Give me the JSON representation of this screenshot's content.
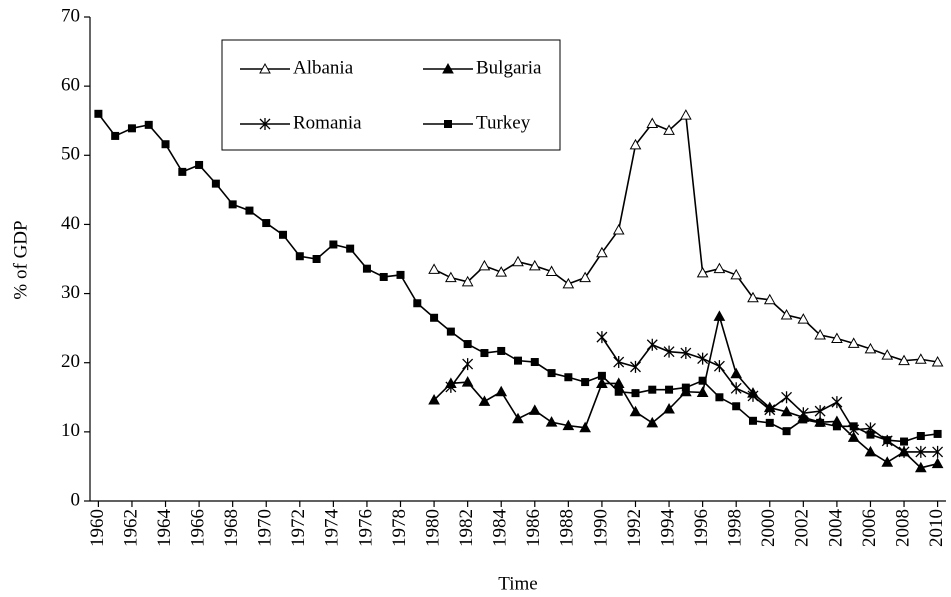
{
  "chart_data": {
    "type": "line",
    "x_label": "Time",
    "y_label": "% of GDP",
    "x": [
      1960,
      1961,
      1962,
      1963,
      1964,
      1965,
      1966,
      1967,
      1968,
      1969,
      1970,
      1971,
      1972,
      1973,
      1974,
      1975,
      1976,
      1977,
      1978,
      1979,
      1980,
      1981,
      1982,
      1983,
      1984,
      1985,
      1986,
      1987,
      1988,
      1989,
      1990,
      1991,
      1992,
      1993,
      1994,
      1995,
      1996,
      1997,
      1998,
      1999,
      2000,
      2001,
      2002,
      2003,
      2004,
      2005,
      2006,
      2007,
      2008,
      2009,
      2010
    ],
    "series": [
      {
        "name": "Albania",
        "color": "#000000",
        "marker": "triangle-open",
        "values": [
          null,
          null,
          null,
          null,
          null,
          null,
          null,
          null,
          null,
          null,
          null,
          null,
          null,
          null,
          null,
          null,
          null,
          null,
          null,
          null,
          33.5,
          32.3,
          31.7,
          34,
          33.1,
          34.6,
          34,
          33.2,
          31.4,
          32.3,
          35.9,
          39.2,
          51.5,
          54.6,
          53.6,
          55.8,
          33,
          33.6,
          32.7,
          29.4,
          29.1,
          26.9,
          26.3,
          24,
          23.5,
          22.8,
          22,
          21.1,
          20.3,
          20.5,
          20.1
        ]
      },
      {
        "name": "Bulgaria",
        "color": "#000000",
        "marker": "triangle",
        "values": [
          null,
          null,
          null,
          null,
          null,
          null,
          null,
          null,
          null,
          null,
          null,
          null,
          null,
          null,
          null,
          null,
          null,
          null,
          null,
          null,
          14.6,
          17,
          17.2,
          14.4,
          15.8,
          11.9,
          13.1,
          11.4,
          10.9,
          10.6,
          17,
          17,
          12.9,
          11.3,
          13.3,
          15.8,
          15.7,
          26.7,
          18.4,
          15.6,
          13.5,
          12.9,
          12.1,
          11.4,
          11.5,
          9.2,
          7.1,
          5.6,
          7.1,
          4.8,
          5.4
        ]
      },
      {
        "name": "Romania",
        "color": "#000000",
        "marker": "asterisk",
        "values": [
          null,
          null,
          null,
          null,
          null,
          null,
          null,
          null,
          null,
          null,
          null,
          null,
          null,
          null,
          null,
          null,
          null,
          null,
          null,
          null,
          null,
          16.5,
          19.8,
          null,
          null,
          null,
          null,
          null,
          null,
          null,
          23.7,
          20.1,
          19.4,
          22.6,
          21.6,
          21.4,
          20.6,
          19.5,
          16.3,
          15.2,
          13.2,
          15,
          12.7,
          13,
          14.3,
          10.3,
          10.5,
          8.7,
          7.1,
          7.1,
          7.1
        ]
      },
      {
        "name": "Turkey",
        "color": "#000000",
        "marker": "square",
        "values": [
          56,
          52.8,
          53.9,
          54.4,
          51.6,
          47.6,
          48.6,
          45.9,
          42.9,
          42,
          40.2,
          38.5,
          35.4,
          35,
          37.1,
          36.5,
          33.6,
          32.4,
          32.7,
          28.6,
          26.5,
          24.5,
          22.7,
          21.4,
          21.7,
          20.3,
          20.1,
          18.5,
          17.9,
          17.2,
          18.1,
          15.8,
          15.6,
          16.1,
          16.1,
          16.4,
          17.4,
          15,
          13.7,
          11.6,
          11.3,
          10.1,
          11.8,
          11.3,
          10.8,
          10.8,
          9.6,
          8.8,
          8.6,
          9.4,
          9.7
        ]
      }
    ],
    "xlim": [
      1959.5,
      2010.5
    ],
    "xticks": [
      1960,
      1962,
      1964,
      1966,
      1968,
      1970,
      1972,
      1974,
      1976,
      1978,
      1980,
      1982,
      1984,
      1986,
      1988,
      1990,
      1992,
      1994,
      1996,
      1998,
      2000,
      2002,
      2004,
      2006,
      2008,
      2010
    ],
    "ylim": [
      0,
      70
    ],
    "yticks": [
      0,
      10,
      20,
      30,
      40,
      50,
      60,
      70
    ],
    "grid": false
  }
}
